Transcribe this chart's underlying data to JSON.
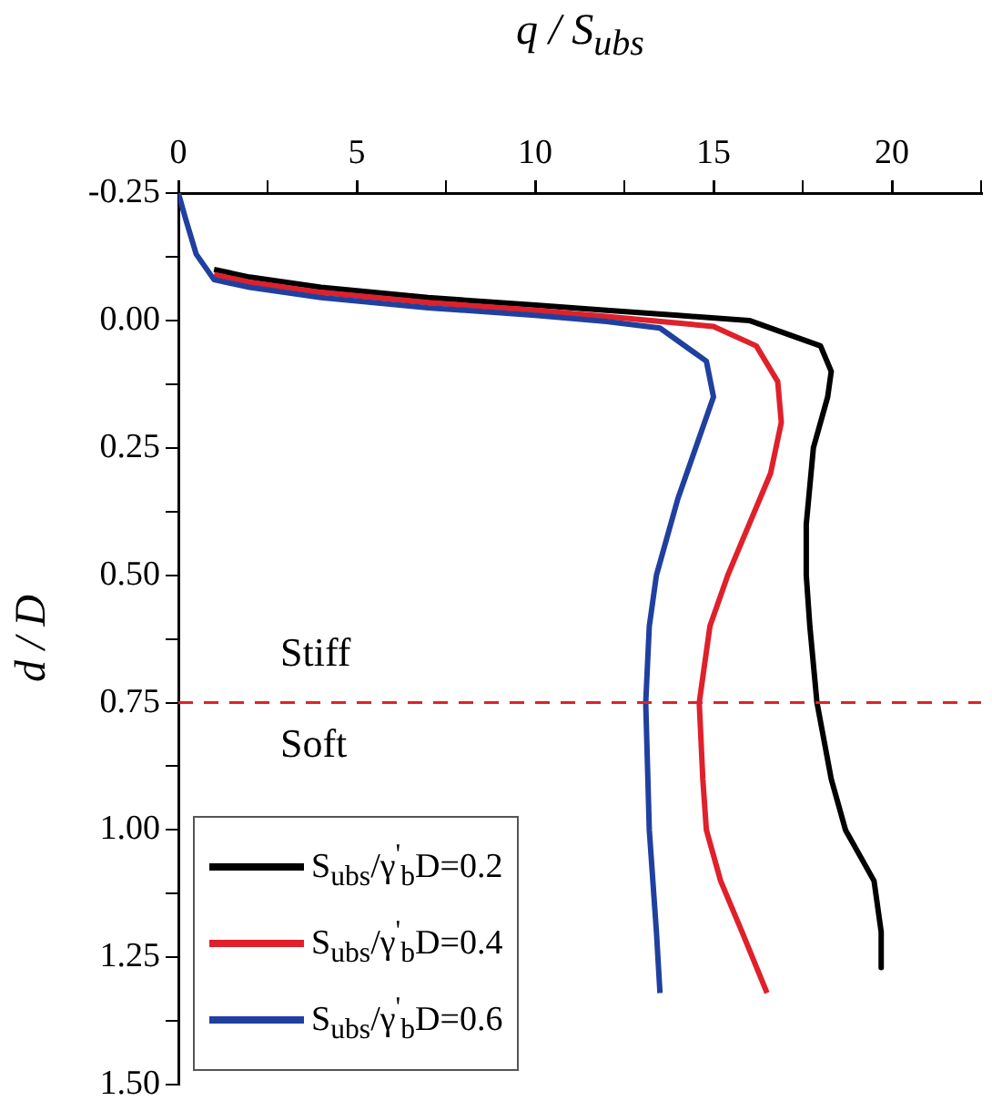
{
  "chart_data": {
    "type": "line",
    "xlabel": "q / S$_{ubs}$",
    "ylabel": "d / D",
    "xlim": [
      0,
      22.5
    ],
    "xticks": [
      0,
      {
        "value": 2.5,
        "label": null
      },
      5,
      {
        "value": 7.5,
        "label": null
      },
      10,
      {
        "value": 12.5,
        "label": null
      },
      15,
      {
        "value": 17.5,
        "label": null
      },
      20,
      {
        "value": 22.5,
        "label": null
      }
    ],
    "ylim": [
      1.5,
      -0.25
    ],
    "yticks": [
      {
        "value": -0.25,
        "label": "-0.25"
      },
      {
        "value": -0.125,
        "label": null
      },
      {
        "value": 0,
        "label": "0.00"
      },
      {
        "value": 0.125,
        "label": null
      },
      {
        "value": 0.25,
        "label": "0.25"
      },
      {
        "value": 0.375,
        "label": null
      },
      {
        "value": 0.5,
        "label": "0.50"
      },
      {
        "value": 0.625,
        "label": null
      },
      {
        "value": 0.75,
        "label": "0.75"
      },
      {
        "value": 0.875,
        "label": null
      },
      {
        "value": 1,
        "label": "1.00"
      },
      {
        "value": 1.125,
        "label": null
      },
      {
        "value": 1.25,
        "label": "1.25"
      },
      {
        "value": 1.375,
        "label": null
      },
      {
        "value": 1.5,
        "label": "1.50"
      }
    ],
    "grid": false,
    "legend": "bottom left",
    "marker": "none",
    "line_style": "solid",
    "series": [
      {
        "name": "S$_{ubs}$/γ$^{'}$$_{b}$D=0.2",
        "color": "#000000",
        "x": [
          1,
          2,
          4,
          7,
          10,
          12,
          14,
          16,
          18,
          18.3,
          18.2,
          17.8,
          17.6,
          17.6,
          17.7,
          17.9,
          18.3,
          18.7,
          19.1,
          19.5,
          19.7,
          19.7
        ],
        "values": [
          -0.1,
          -0.085,
          -0.065,
          -0.045,
          -0.03,
          -0.02,
          -0.01,
          0.0,
          0.05,
          0.1,
          0.15,
          0.25,
          0.4,
          0.5,
          0.6,
          0.75,
          0.9,
          1.0,
          1.05,
          1.1,
          1.2,
          1.27
        ]
      },
      {
        "name": "S$_{ubs}$/γ$^{'}$$_{b}$D=0.4",
        "color": "#e0202a",
        "x": [
          1,
          2,
          4,
          7,
          10,
          12,
          14,
          15,
          16.2,
          16.8,
          16.9,
          16.6,
          16.0,
          15.4,
          14.9,
          14.6,
          14.7,
          14.8,
          15.2,
          15.8,
          16.5
        ],
        "values": [
          -0.09,
          -0.075,
          -0.055,
          -0.035,
          -0.02,
          -0.008,
          0.005,
          0.012,
          0.05,
          0.12,
          0.2,
          0.3,
          0.4,
          0.5,
          0.6,
          0.75,
          0.9,
          1.0,
          1.1,
          1.2,
          1.32
        ]
      },
      {
        "name": "S$_{ubs}$/γ$^{'}$$_{b}$D=0.6",
        "color": "#2040a0",
        "x": [
          0,
          0.2,
          0.5,
          1,
          2,
          4,
          7,
          10,
          12,
          13.5,
          14.8,
          15.0,
          14.5,
          14.0,
          13.4,
          13.2,
          13.1,
          13.2,
          13.4,
          13.5
        ],
        "values": [
          -0.25,
          -0.2,
          -0.13,
          -0.08,
          -0.065,
          -0.045,
          -0.025,
          -0.01,
          0.002,
          0.015,
          0.08,
          0.15,
          0.25,
          0.35,
          0.5,
          0.6,
          0.75,
          1.0,
          1.2,
          1.32
        ]
      }
    ],
    "ref_lines": [
      {
        "axis": "y",
        "value": 0.75,
        "color": "#e0202a",
        "line_style": "dashed"
      }
    ],
    "annotations": [
      "Stiff",
      "Soft"
    ]
  }
}
